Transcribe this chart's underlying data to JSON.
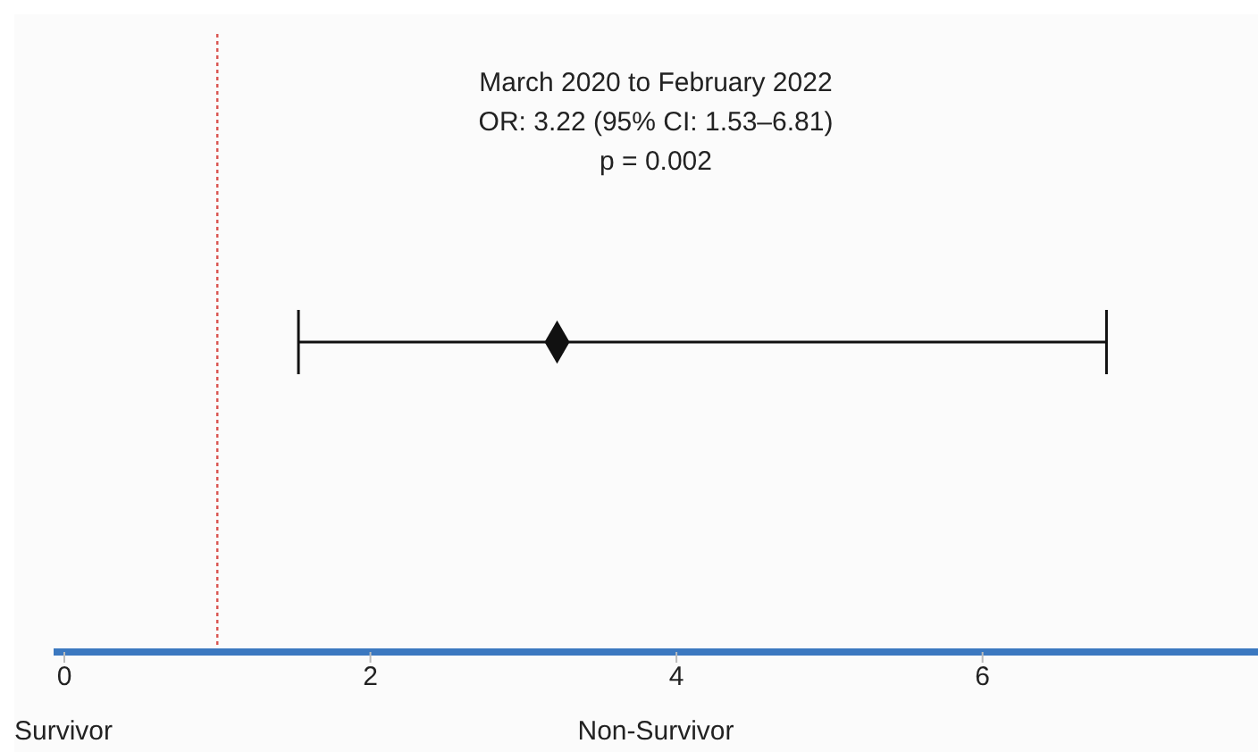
{
  "chart_data": {
    "type": "scatter",
    "orientation": "horizontal",
    "categories": [
      null
    ],
    "series": [
      {
        "color": "#111111",
        "values": [
          3.22
        ],
        "errors": [
          [
            1.53,
            6.81
          ]
        ]
      }
    ],
    "marker": "diamond",
    "xlim": [
      -0.07,
      7.8
    ],
    "xticks": [
      0,
      2,
      4,
      6
    ],
    "tick_labels": "x",
    "grid": false,
    "ref_lines": [
      {
        "axis": "x",
        "value": 1,
        "color": "#d9534f",
        "line_style": "dotted"
      }
    ],
    "annotations": [
      "March 2020 to February 2022",
      "OR: 3.22 (95% CI: 1.53–6.81)",
      "p = 0.002",
      "Survivor",
      "Non-Survivor"
    ]
  }
}
